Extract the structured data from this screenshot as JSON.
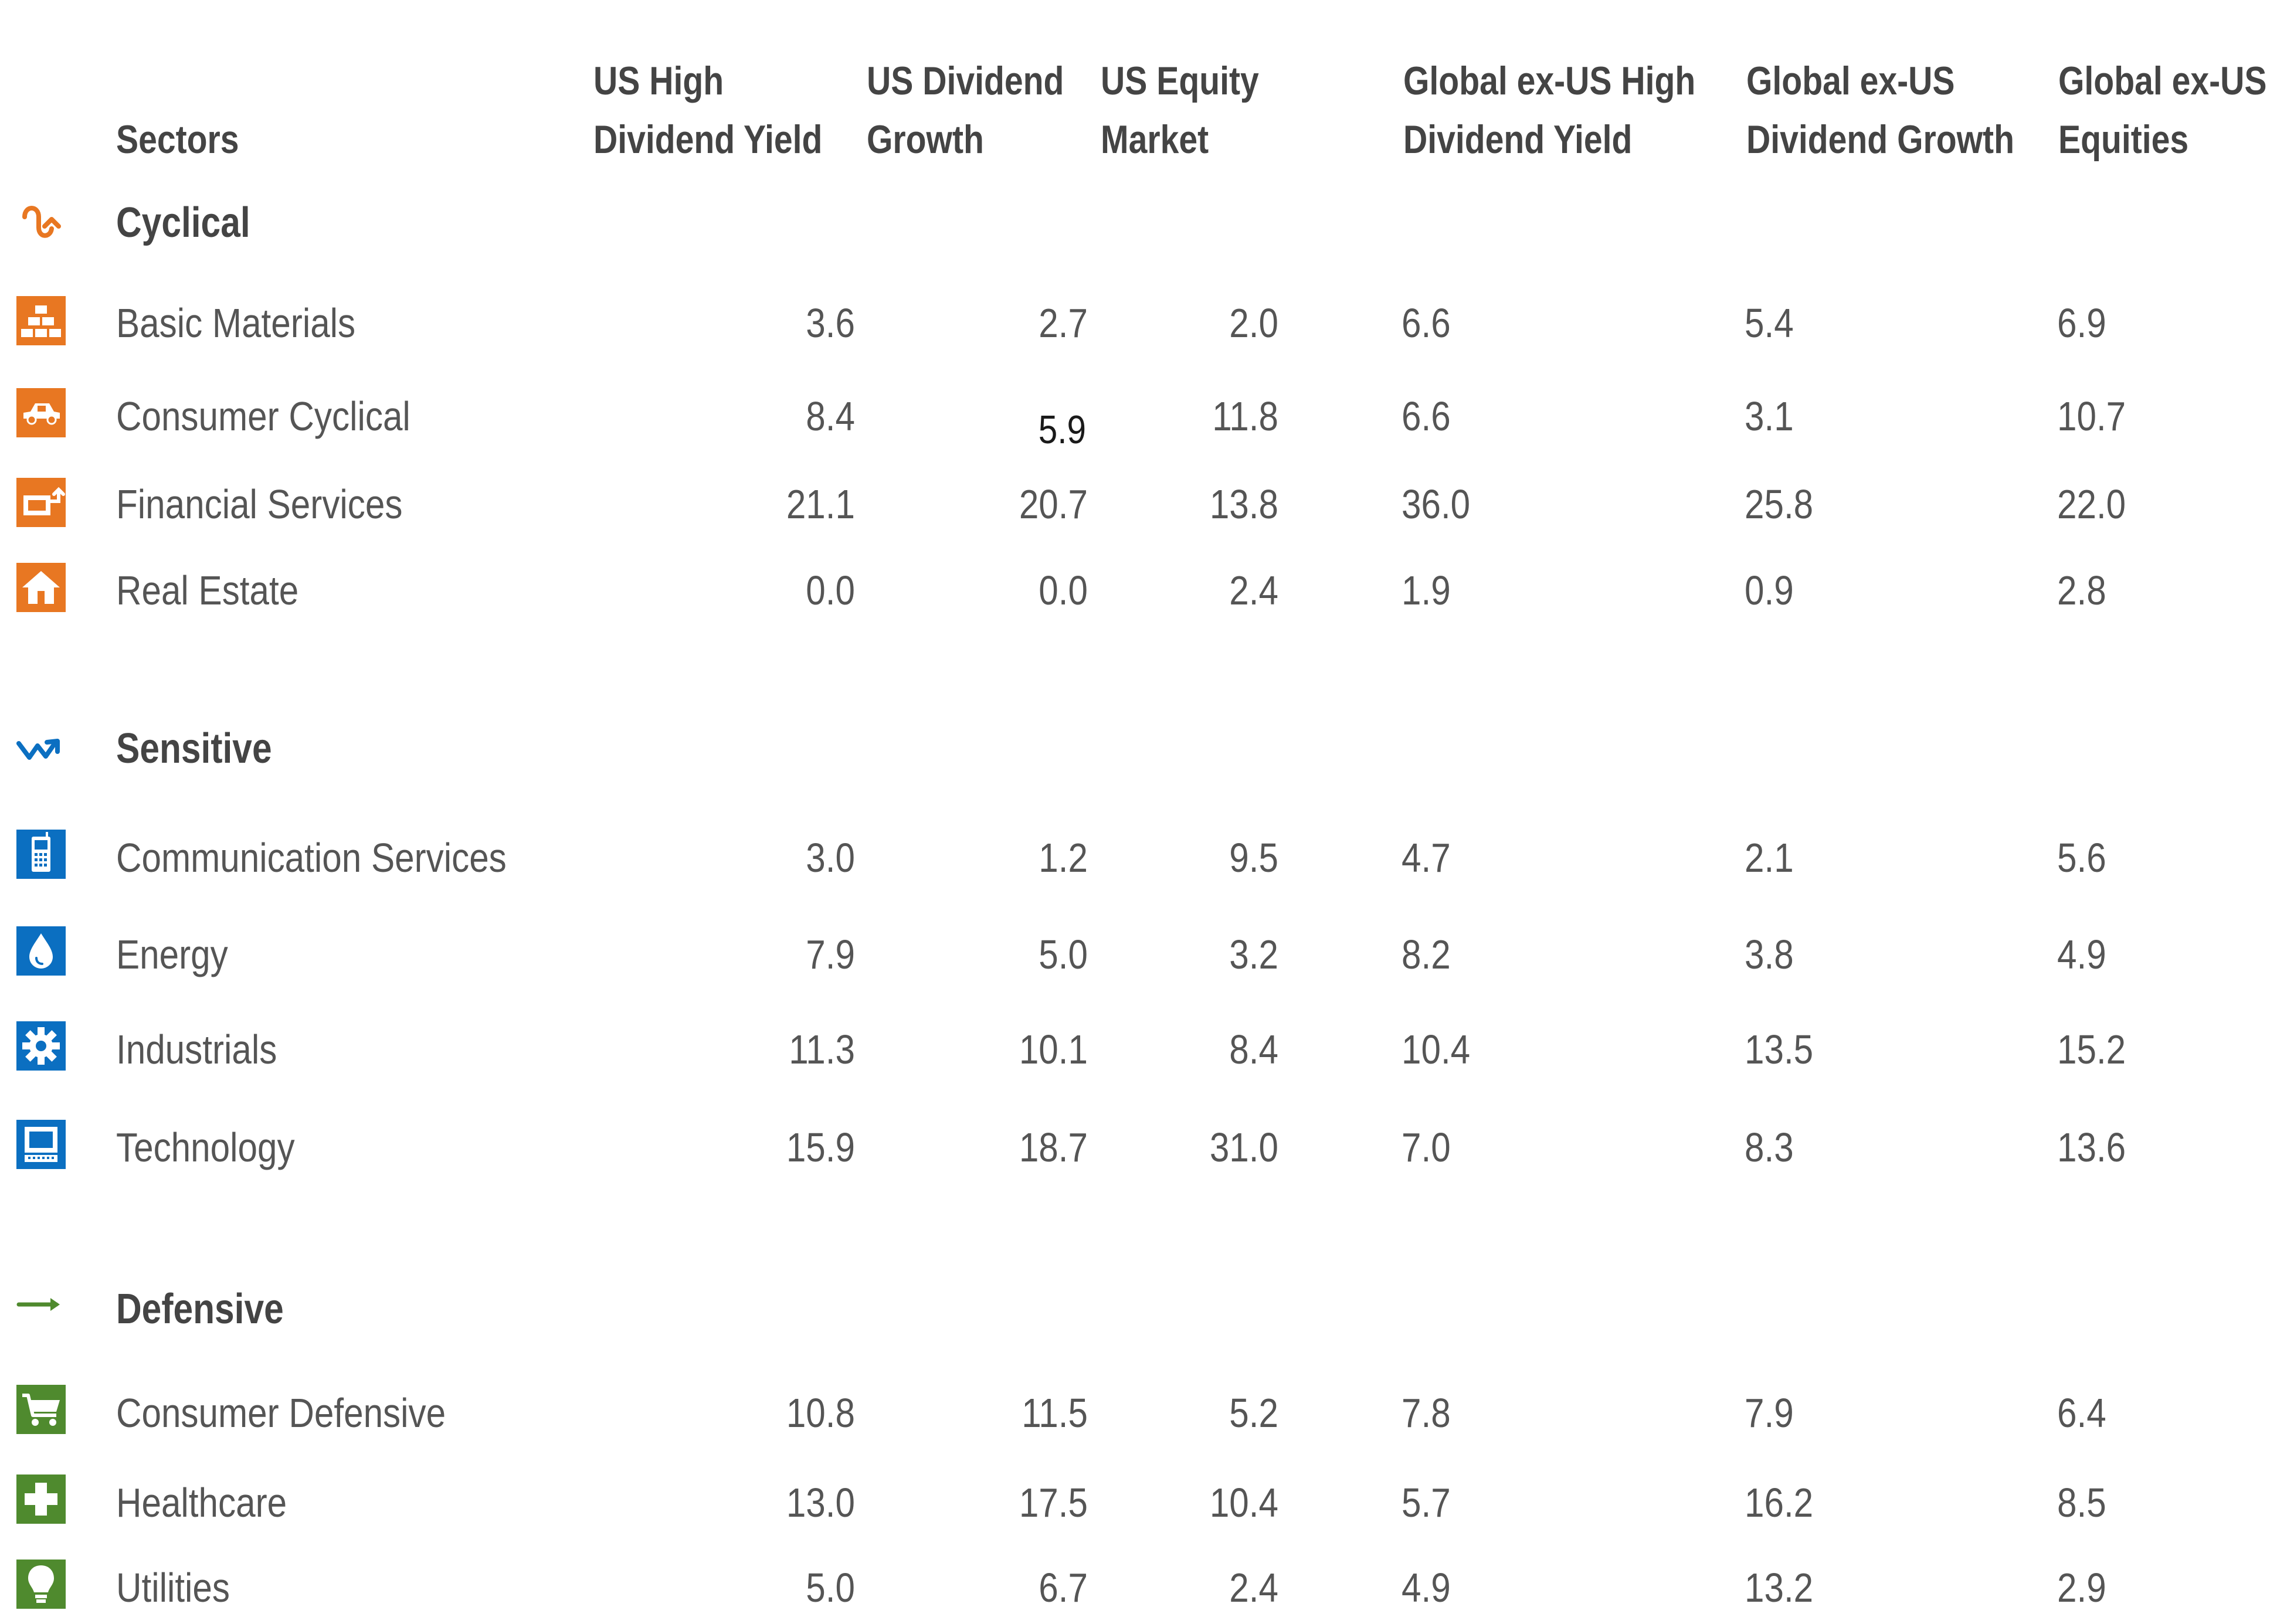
{
  "header": {
    "sectors_label": "Sectors",
    "columns": [
      {
        "line1": "US High",
        "line2": "Dividend Yield"
      },
      {
        "line1": "US Dividend",
        "line2": "Growth"
      },
      {
        "line1": "US Equity",
        "line2": "Market"
      },
      {
        "line1": "Global ex-US High",
        "line2": "Dividend Yield"
      },
      {
        "line1": "Global ex-US",
        "line2": "Dividend Growth"
      },
      {
        "line1": "Global ex-US",
        "line2": "Equities"
      }
    ]
  },
  "colors": {
    "cyclical": "#e87722",
    "sensitive": "#0b6fc1",
    "defensive": "#4f8a2e",
    "text": "#555555",
    "header_text": "#444444"
  },
  "chart_data": {
    "type": "table",
    "columns": [
      "US High Dividend Yield",
      "US Dividend Growth",
      "US Equity Market",
      "Global ex-US High Dividend Yield",
      "Global ex-US Dividend Growth",
      "Global ex-US Equities"
    ],
    "groups": [
      {
        "name": "Cyclical",
        "icon": "cyclical-icon",
        "rows": [
          {
            "sector": "Basic Materials",
            "icon": "basic-materials-icon",
            "values": [
              "3.6",
              "2.7",
              "2.0",
              "6.6",
              "5.4",
              "6.9"
            ]
          },
          {
            "sector": "Consumer Cyclical",
            "icon": "consumer-cyclical-icon",
            "values": [
              "8.4",
              "5.9",
              "11.8",
              "6.6",
              "3.1",
              "10.7"
            ]
          },
          {
            "sector": "Financial Services",
            "icon": "financial-services-icon",
            "values": [
              "21.1",
              "20.7",
              "13.8",
              "36.0",
              "25.8",
              "22.0"
            ]
          },
          {
            "sector": "Real Estate",
            "icon": "real-estate-icon",
            "values": [
              "0.0",
              "0.0",
              "2.4",
              "1.9",
              "0.9",
              "2.8"
            ]
          }
        ]
      },
      {
        "name": "Sensitive",
        "icon": "sensitive-icon",
        "rows": [
          {
            "sector": "Communication Services",
            "icon": "communication-services-icon",
            "values": [
              "3.0",
              "1.2",
              "9.5",
              "4.7",
              "2.1",
              "5.6"
            ]
          },
          {
            "sector": "Energy",
            "icon": "energy-icon",
            "values": [
              "7.9",
              "5.0",
              "3.2",
              "8.2",
              "3.8",
              "4.9"
            ]
          },
          {
            "sector": "Industrials",
            "icon": "industrials-icon",
            "values": [
              "11.3",
              "10.1",
              "8.4",
              "10.4",
              "13.5",
              "15.2"
            ]
          },
          {
            "sector": "Technology",
            "icon": "technology-icon",
            "values": [
              "15.9",
              "18.7",
              "31.0",
              "7.0",
              "8.3",
              "13.6"
            ]
          }
        ]
      },
      {
        "name": "Defensive",
        "icon": "defensive-icon",
        "rows": [
          {
            "sector": "Consumer Defensive",
            "icon": "consumer-defensive-icon",
            "values": [
              "10.8",
              "11.5",
              "5.2",
              "7.8",
              "7.9",
              "6.4"
            ]
          },
          {
            "sector": "Healthcare",
            "icon": "healthcare-icon",
            "values": [
              "13.0",
              "17.5",
              "10.4",
              "5.7",
              "16.2",
              "8.5"
            ]
          },
          {
            "sector": "Utilities",
            "icon": "utilities-icon",
            "values": [
              "5.0",
              "6.7",
              "2.4",
              "4.9",
              "13.2",
              "2.9"
            ]
          }
        ]
      }
    ]
  }
}
